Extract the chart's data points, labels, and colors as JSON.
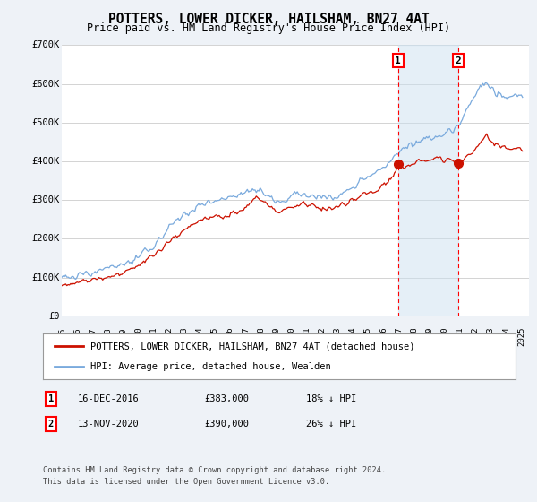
{
  "title": "POTTERS, LOWER DICKER, HAILSHAM, BN27 4AT",
  "subtitle": "Price paid vs. HM Land Registry's House Price Index (HPI)",
  "ylim": [
    0,
    700000
  ],
  "yticks": [
    0,
    100000,
    200000,
    300000,
    400000,
    500000,
    600000,
    700000
  ],
  "ytick_labels": [
    "£0",
    "£100K",
    "£200K",
    "£300K",
    "£400K",
    "£500K",
    "£600K",
    "£700K"
  ],
  "xlim_start": 1995,
  "xlim_end": 2025.5,
  "hpi_color": "#7aaadd",
  "price_color": "#cc1100",
  "background_color": "#eef2f7",
  "plot_bg_color": "#ffffff",
  "grid_color": "#cccccc",
  "marker1_year": 2016.96,
  "marker1_label": "1",
  "marker1_date": "16-DEC-2016",
  "marker1_price": "£383,000",
  "marker1_pct": "18% ↓ HPI",
  "marker2_year": 2020.87,
  "marker2_label": "2",
  "marker2_date": "13-NOV-2020",
  "marker2_price": "£390,000",
  "marker2_pct": "26% ↓ HPI",
  "legend_line1": "POTTERS, LOWER DICKER, HAILSHAM, BN27 4AT (detached house)",
  "legend_line2": "HPI: Average price, detached house, Wealden",
  "footer1": "Contains HM Land Registry data © Crown copyright and database right 2024.",
  "footer2": "This data is licensed under the Open Government Licence v3.0."
}
